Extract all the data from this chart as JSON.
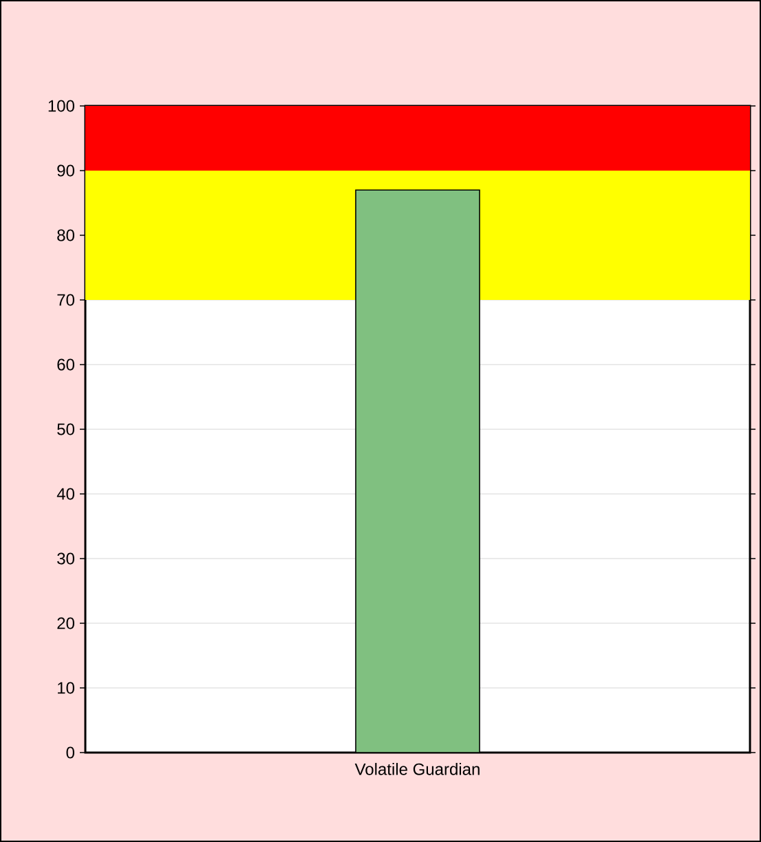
{
  "chart_data": {
    "type": "bar",
    "categories": [
      "Volatile Guardian"
    ],
    "values": [
      87
    ],
    "color": "#80c080",
    "ylim": [
      0,
      100
    ],
    "yticks": [
      0,
      10,
      20,
      30,
      40,
      50,
      60,
      70,
      80,
      90,
      100
    ],
    "grid": true,
    "bands": [
      {
        "axis": "y",
        "from": 70,
        "to": 90,
        "color": "#ffff00"
      },
      {
        "axis": "y",
        "from": 90,
        "to": 100,
        "color": "#ff0000"
      }
    ]
  }
}
